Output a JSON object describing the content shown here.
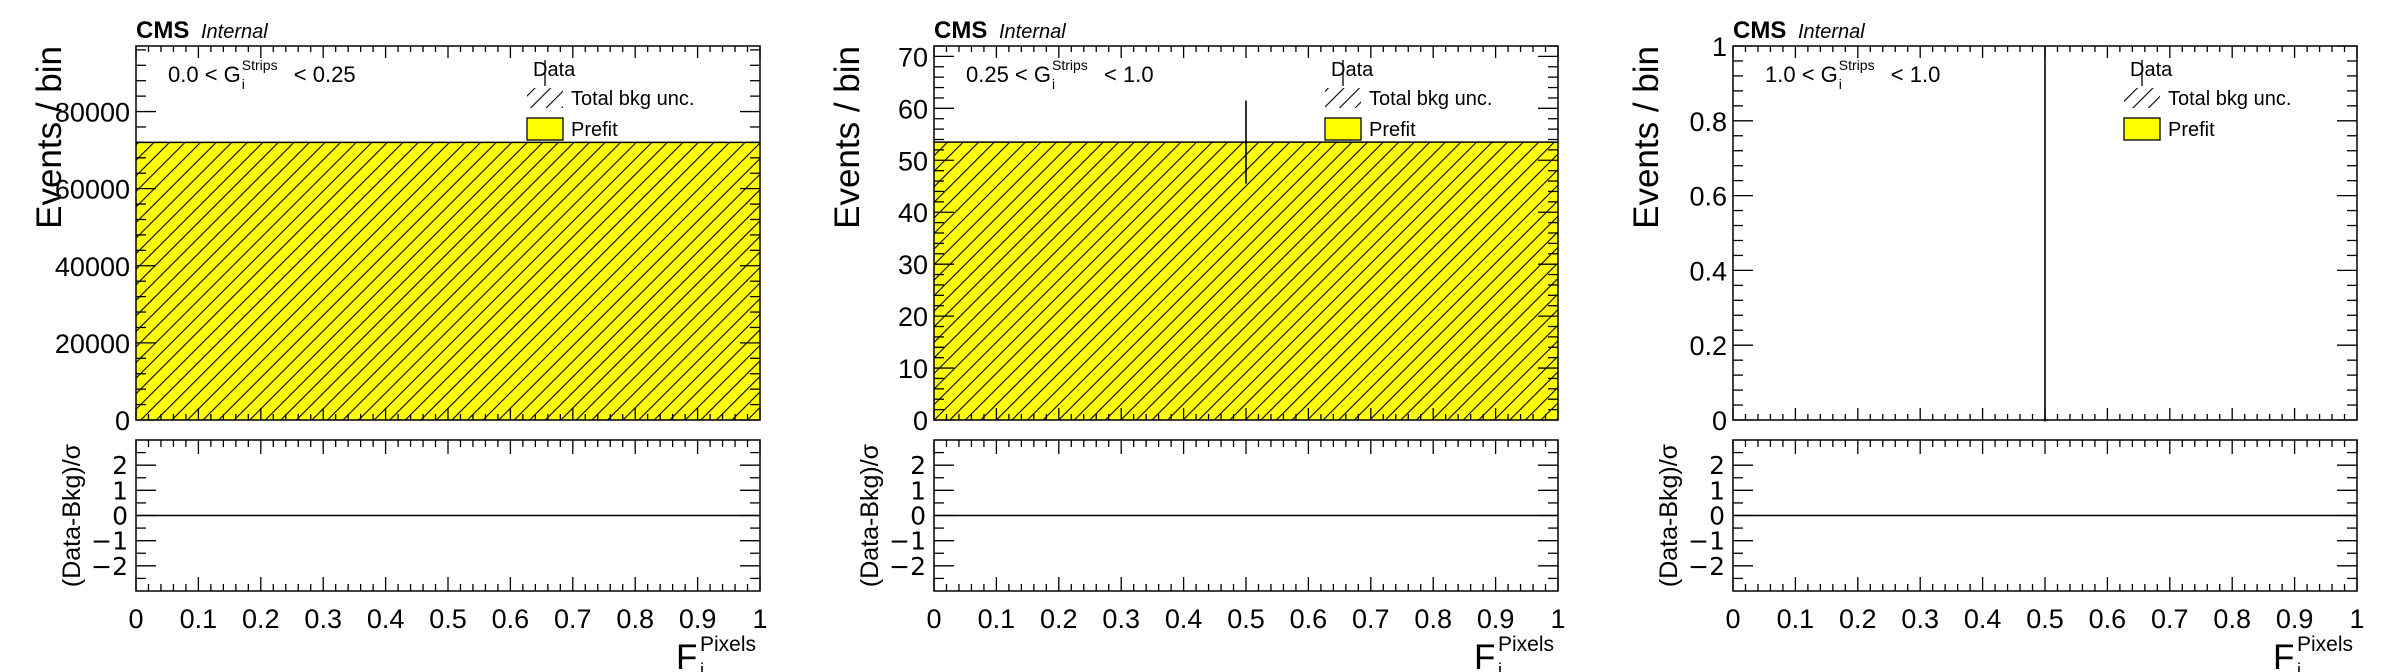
{
  "colors": {
    "prefit_fill": "#ffff00",
    "hatch": "#000000",
    "axis": "#000000"
  },
  "chart_data": [
    {
      "type": "bar",
      "experiment": "CMS",
      "status": "Internal",
      "region_label": {
        "pre": "0.0 < G",
        "sup": "Strips",
        "sub": "i",
        "post": "< 0.25"
      },
      "xlabel": {
        "base": "F",
        "sup": "Pixels",
        "sub": "i"
      },
      "ylabel": "Events / bin",
      "ratio_ylabel": "(Data-Bkg)/σ",
      "xlim": [
        0,
        1
      ],
      "ylim": [
        0,
        97000
      ],
      "yticks": [
        0,
        20000,
        40000,
        60000,
        80000
      ],
      "ytick_labels": [
        "0",
        "20000",
        "40000",
        "60000",
        "80000"
      ],
      "ratio_ylim": [
        -3.0,
        3.0
      ],
      "ratio_yticks": [
        -2,
        -1,
        0,
        1,
        2
      ],
      "ratio_ytick_labels": [
        "−2",
        "−1",
        "0",
        "1",
        "2"
      ],
      "xticks": [
        0,
        0.1,
        0.2,
        0.3,
        0.4,
        0.5,
        0.6,
        0.7,
        0.8,
        0.9,
        1
      ],
      "xtick_labels": [
        "0",
        "0.1",
        "0.2",
        "0.3",
        "0.4",
        "0.5",
        "0.6",
        "0.7",
        "0.8",
        "0.9",
        "1"
      ],
      "bins": [
        {
          "low": 0,
          "high": 1,
          "prefit": 72000
        }
      ],
      "data_points": [],
      "pulls": [
        0
      ],
      "legend": {
        "placement": "top-right",
        "entries": [
          "Data",
          "Total bkg unc.",
          "Prefit"
        ]
      }
    },
    {
      "type": "bar",
      "experiment": "CMS",
      "status": "Internal",
      "region_label": {
        "pre": "0.25 < G",
        "sup": "Strips",
        "sub": "i",
        "post": "< 1.0"
      },
      "xlabel": {
        "base": "F",
        "sup": "Pixels",
        "sub": "i"
      },
      "ylabel": "Events / bin",
      "ratio_ylabel": "(Data-Bkg)/σ",
      "xlim": [
        0,
        1
      ],
      "ylim": [
        0,
        72
      ],
      "yticks": [
        0,
        10,
        20,
        30,
        40,
        50,
        60,
        70
      ],
      "ytick_labels": [
        "0",
        "10",
        "20",
        "30",
        "40",
        "50",
        "60",
        "70"
      ],
      "ratio_ylim": [
        -3.0,
        3.0
      ],
      "ratio_yticks": [
        -2,
        -1,
        0,
        1,
        2
      ],
      "ratio_ytick_labels": [
        "−2",
        "−1",
        "0",
        "1",
        "2"
      ],
      "xticks": [
        0,
        0.1,
        0.2,
        0.3,
        0.4,
        0.5,
        0.6,
        0.7,
        0.8,
        0.9,
        1
      ],
      "xtick_labels": [
        "0",
        "0.1",
        "0.2",
        "0.3",
        "0.4",
        "0.5",
        "0.6",
        "0.7",
        "0.8",
        "0.9",
        "1"
      ],
      "bins": [
        {
          "low": 0,
          "high": 1,
          "prefit": 53.5
        }
      ],
      "data_points": [
        {
          "x": 0.5,
          "y": 53.5,
          "err_low": 8.0,
          "err_high": 8.0
        }
      ],
      "pulls": [
        0
      ],
      "legend": {
        "placement": "top-right",
        "entries": [
          "Data",
          "Total bkg unc.",
          "Prefit"
        ]
      }
    },
    {
      "type": "bar",
      "experiment": "CMS",
      "status": "Internal",
      "region_label": {
        "pre": "1.0 < G",
        "sup": "Strips",
        "sub": "i",
        "post": "< 1.0"
      },
      "xlabel": {
        "base": "F",
        "sup": "Pixels",
        "sub": "i"
      },
      "ylabel": "Events / bin",
      "ratio_ylabel": "(Data-Bkg)/σ",
      "xlim": [
        0,
        1
      ],
      "ylim": [
        0,
        1
      ],
      "yticks": [
        0,
        0.2,
        0.4,
        0.6,
        0.8,
        1
      ],
      "ytick_labels": [
        "0",
        "0.2",
        "0.4",
        "0.6",
        "0.8",
        "1"
      ],
      "ratio_ylim": [
        -3.0,
        3.0
      ],
      "ratio_yticks": [
        -2,
        -1,
        0,
        1,
        2
      ],
      "ratio_ytick_labels": [
        "−2",
        "−1",
        "0",
        "1",
        "2"
      ],
      "xticks": [
        0,
        0.1,
        0.2,
        0.3,
        0.4,
        0.5,
        0.6,
        0.7,
        0.8,
        0.9,
        1
      ],
      "xtick_labels": [
        "0",
        "0.1",
        "0.2",
        "0.3",
        "0.4",
        "0.5",
        "0.6",
        "0.7",
        "0.8",
        "0.9",
        "1"
      ],
      "bins": [
        {
          "low": 0,
          "high": 1,
          "prefit": 0
        }
      ],
      "data_points": [
        {
          "x": 0.5,
          "y": 0,
          "err_low": 0,
          "err_high": 1.0
        }
      ],
      "pulls": [
        0
      ],
      "legend": {
        "placement": "top-right",
        "entries": [
          "Data",
          "Total bkg unc.",
          "Prefit"
        ]
      }
    }
  ]
}
